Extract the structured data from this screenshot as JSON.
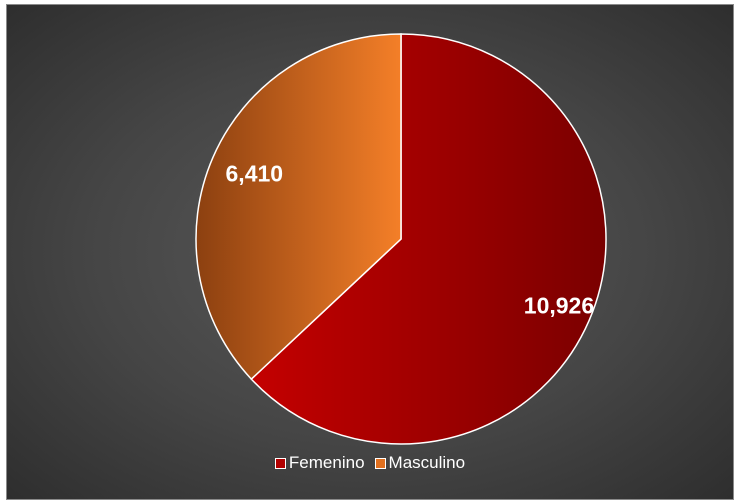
{
  "chart_data": {
    "type": "pie",
    "categories": [
      "Femenino",
      "Masculino"
    ],
    "values": [
      10926,
      6410
    ],
    "data_labels": [
      "10,926",
      "6,410"
    ],
    "colors": [
      "#a30000",
      "#e0701f"
    ],
    "start_angle": "12 o'clock, clockwise",
    "legend": "bottom",
    "background": "#464646"
  }
}
